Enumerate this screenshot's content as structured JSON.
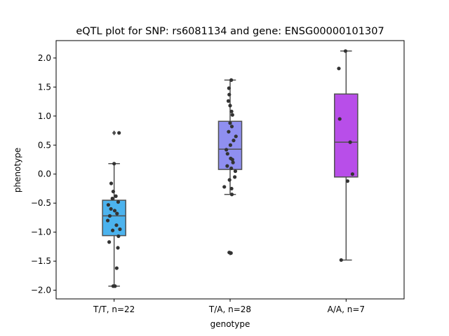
{
  "chart_data": {
    "type": "box",
    "title": "eQTL plot for SNP: rs6081134 and gene: ENSG00000101307",
    "xlabel": "genotype",
    "ylabel": "phenotype",
    "ylim": [
      -2.15,
      2.3
    ],
    "yticks": [
      -2.0,
      -1.5,
      -1.0,
      -0.5,
      0.0,
      0.5,
      1.0,
      1.5,
      2.0
    ],
    "yticklabels": [
      "−2.0",
      "−1.5",
      "−1.0",
      "−0.5",
      "0.0",
      "0.5",
      "1.0",
      "1.5",
      "2.0"
    ],
    "categories": [
      "T/T, n=22",
      "T/A, n=28",
      "A/A, n=7"
    ],
    "colors": [
      "#4cb3ee",
      "#8f8ff0",
      "#b84ee9"
    ],
    "boxes": [
      {
        "q1": -1.06,
        "median": -0.72,
        "q3": -0.45,
        "whisker_low": -1.93,
        "whisker_high": 0.18,
        "outliers": [
          0.71
        ]
      },
      {
        "q1": 0.08,
        "median": 0.43,
        "q3": 0.91,
        "whisker_low": -0.35,
        "whisker_high": 1.62,
        "outliers": [
          -1.36
        ]
      },
      {
        "q1": -0.05,
        "median": 0.55,
        "q3": 1.38,
        "whisker_low": -1.48,
        "whisker_high": 2.12,
        "outliers": []
      }
    ],
    "points": [
      [
        [
          0.17,
          0.71
        ],
        [
          0.0,
          0.18
        ],
        [
          -0.1,
          -0.16
        ],
        [
          -0.03,
          -0.3
        ],
        [
          0.06,
          -0.38
        ],
        [
          -0.06,
          -0.42
        ],
        [
          0.14,
          -0.48
        ],
        [
          -0.2,
          -0.53
        ],
        [
          -0.11,
          -0.6
        ],
        [
          0.02,
          -0.63
        ],
        [
          0.1,
          -0.68
        ],
        [
          -0.15,
          -0.72
        ],
        [
          -0.22,
          -0.8
        ],
        [
          0.08,
          -0.88
        ],
        [
          0.2,
          -0.95
        ],
        [
          -0.05,
          -0.97
        ],
        [
          0.15,
          -1.07
        ],
        [
          -0.17,
          -1.17
        ],
        [
          0.13,
          -1.27
        ],
        [
          0.09,
          -1.62
        ],
        [
          -0.03,
          -1.93
        ],
        [
          0.03,
          -1.93
        ]
      ],
      [
        [
          0.04,
          1.62
        ],
        [
          -0.04,
          1.48
        ],
        [
          -0.03,
          1.37
        ],
        [
          -0.06,
          1.26
        ],
        [
          0.0,
          1.18
        ],
        [
          0.05,
          1.08
        ],
        [
          0.08,
          1.02
        ],
        [
          0.0,
          0.88
        ],
        [
          0.06,
          0.82
        ],
        [
          0.2,
          0.65
        ],
        [
          0.12,
          0.58
        ],
        [
          -0.13,
          0.42
        ],
        [
          -0.09,
          0.35
        ],
        [
          0.02,
          0.27
        ],
        [
          0.08,
          0.25
        ],
        [
          0.1,
          0.2
        ],
        [
          -0.1,
          0.14
        ],
        [
          0.04,
          0.1
        ],
        [
          0.18,
          0.05
        ],
        [
          0.16,
          -0.05
        ],
        [
          -0.02,
          -0.1
        ],
        [
          -0.2,
          -0.22
        ],
        [
          0.05,
          -0.25
        ],
        [
          0.06,
          -0.35
        ],
        [
          -0.03,
          -1.35
        ],
        [
          0.03,
          -1.36
        ],
        [
          0.01,
          0.5
        ],
        [
          -0.05,
          0.73
        ]
      ],
      [
        [
          -0.02,
          2.12
        ],
        [
          -0.25,
          1.82
        ],
        [
          -0.22,
          0.95
        ],
        [
          0.14,
          0.55
        ],
        [
          0.22,
          0.0
        ],
        [
          0.05,
          -0.12
        ],
        [
          -0.17,
          -1.48
        ]
      ]
    ]
  }
}
